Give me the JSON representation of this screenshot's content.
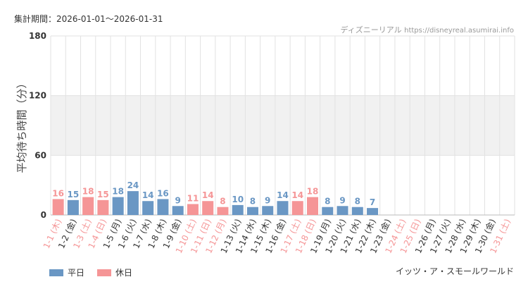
{
  "header": {
    "period": "集計期間：2026-01-01～2026-01-31",
    "source_site": "ディズニーリアル",
    "source_url": "https://disneyreal.asumirai.info"
  },
  "footer": {
    "attraction": "イッツ・ア・スモールワールド"
  },
  "colors": {
    "weekday": "#6a97c4",
    "holiday": "#f59596",
    "band": "#f1f1f1",
    "grid": "#e2e2e2"
  },
  "chart_data": {
    "type": "bar",
    "ylabel": "平均待ち時間（分）",
    "xlabel": "",
    "ylim": [
      0,
      180
    ],
    "yticks": [
      "0",
      "60",
      "120",
      "180"
    ],
    "shaded_band": [
      60,
      120
    ],
    "legend": {
      "position": "bottom-left",
      "entries": [
        {
          "name": "平日",
          "key": "weekday"
        },
        {
          "name": "休日",
          "key": "holiday"
        }
      ]
    },
    "categories": [
      "1-1 (木)",
      "1-2 (金)",
      "1-3 (土)",
      "1-4 (日)",
      "1-5 (月)",
      "1-6 (火)",
      "1-7 (水)",
      "1-8 (木)",
      "1-9 (金)",
      "1-10 (土)",
      "1-11 (日)",
      "1-12 (月)",
      "1-13 (火)",
      "1-14 (水)",
      "1-15 (木)",
      "1-16 (金)",
      "1-17 (土)",
      "1-18 (日)",
      "1-19 (月)",
      "1-20 (火)",
      "1-21 (水)",
      "1-22 (木)",
      "1-23 (金)",
      "1-24 (土)",
      "1-25 (日)",
      "1-26 (月)",
      "1-27 (火)",
      "1-28 (水)",
      "1-29 (木)",
      "1-30 (金)",
      "1-31 (土)"
    ],
    "values": [
      16,
      15,
      18,
      15,
      18,
      24,
      14,
      16,
      9,
      11,
      14,
      8,
      10,
      8,
      9,
      14,
      14,
      18,
      8,
      9,
      8,
      7,
      null,
      null,
      null,
      null,
      null,
      null,
      null,
      null,
      null
    ],
    "holiday": [
      true,
      false,
      true,
      true,
      false,
      false,
      false,
      false,
      false,
      true,
      true,
      true,
      false,
      false,
      false,
      false,
      true,
      true,
      false,
      false,
      false,
      false,
      false,
      true,
      true,
      false,
      false,
      false,
      false,
      false,
      true
    ]
  }
}
